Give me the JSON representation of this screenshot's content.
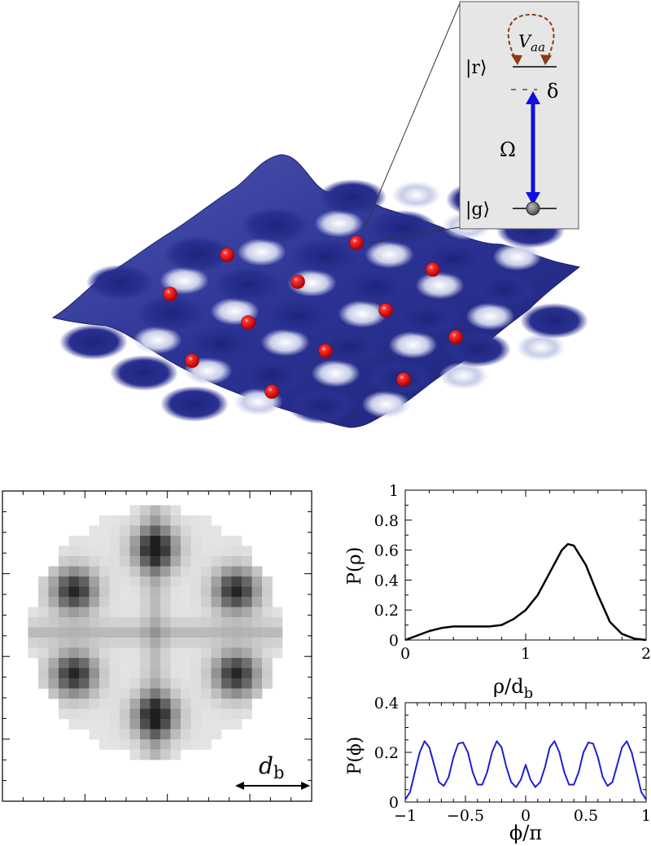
{
  "inset": {
    "state_r": "|r⟩",
    "state_g": "|g⟩",
    "interaction": "V",
    "interaction_sub": "aa",
    "detuning": "δ",
    "rabi": "Ω"
  },
  "density_map": {
    "scale_label": "d",
    "scale_sub": "b"
  },
  "chart_data": [
    {
      "type": "line",
      "ylabel": "P(ρ)",
      "xlabel": "ρ/d_b",
      "xlabel_main": "ρ/d",
      "xlabel_sub": "b",
      "xlim": [
        0,
        2
      ],
      "ylim": [
        0,
        1
      ],
      "xticks": [
        0,
        1,
        2
      ],
      "yticks": [
        0,
        0.2,
        0.4,
        0.6,
        0.8,
        1
      ],
      "ytick_labels": [
        "0",
        "0.2",
        "0.4",
        "0.6",
        "0.8",
        "1"
      ],
      "xtick_labels": [
        "0",
        "1",
        "2"
      ],
      "color": "#000000",
      "x": [
        0,
        0.1,
        0.2,
        0.3,
        0.4,
        0.5,
        0.6,
        0.7,
        0.8,
        0.9,
        1.0,
        1.1,
        1.2,
        1.3,
        1.35,
        1.4,
        1.5,
        1.6,
        1.7,
        1.8,
        1.9,
        2.0
      ],
      "y": [
        0.0,
        0.03,
        0.06,
        0.08,
        0.09,
        0.09,
        0.09,
        0.09,
        0.1,
        0.14,
        0.2,
        0.3,
        0.45,
        0.6,
        0.64,
        0.63,
        0.5,
        0.3,
        0.12,
        0.04,
        0.01,
        0.0
      ]
    },
    {
      "type": "line",
      "ylabel": "P(ϕ)",
      "xlabel": "ϕ/π",
      "xlim": [
        -1,
        1
      ],
      "ylim": [
        0,
        0.4
      ],
      "xticks": [
        -1,
        -0.5,
        0,
        0.5,
        1
      ],
      "yticks": [
        0,
        0.2,
        0.4
      ],
      "ytick_labels": [
        "0",
        "0.2",
        "0.4"
      ],
      "xtick_labels": [
        "−1",
        "−0.5",
        "0",
        "0.5",
        "1"
      ],
      "color": "#1f1fd0",
      "x": [
        -1.0,
        -0.96,
        -0.92,
        -0.88,
        -0.84,
        -0.8,
        -0.76,
        -0.72,
        -0.68,
        -0.64,
        -0.6,
        -0.56,
        -0.52,
        -0.48,
        -0.44,
        -0.4,
        -0.36,
        -0.32,
        -0.28,
        -0.24,
        -0.2,
        -0.16,
        -0.12,
        -0.08,
        -0.04,
        0.0,
        0.04,
        0.08,
        0.12,
        0.16,
        0.2,
        0.24,
        0.28,
        0.32,
        0.36,
        0.4,
        0.44,
        0.48,
        0.52,
        0.56,
        0.6,
        0.64,
        0.68,
        0.72,
        0.76,
        0.8,
        0.84,
        0.88,
        0.92,
        0.96,
        1.0
      ],
      "y": [
        0.01,
        0.04,
        0.12,
        0.2,
        0.245,
        0.22,
        0.15,
        0.08,
        0.065,
        0.1,
        0.18,
        0.235,
        0.24,
        0.2,
        0.12,
        0.07,
        0.07,
        0.12,
        0.2,
        0.245,
        0.22,
        0.14,
        0.08,
        0.06,
        0.09,
        0.15,
        0.09,
        0.06,
        0.08,
        0.14,
        0.22,
        0.245,
        0.2,
        0.12,
        0.07,
        0.07,
        0.12,
        0.2,
        0.24,
        0.235,
        0.18,
        0.1,
        0.065,
        0.08,
        0.15,
        0.22,
        0.245,
        0.2,
        0.12,
        0.04,
        0.01
      ]
    }
  ]
}
